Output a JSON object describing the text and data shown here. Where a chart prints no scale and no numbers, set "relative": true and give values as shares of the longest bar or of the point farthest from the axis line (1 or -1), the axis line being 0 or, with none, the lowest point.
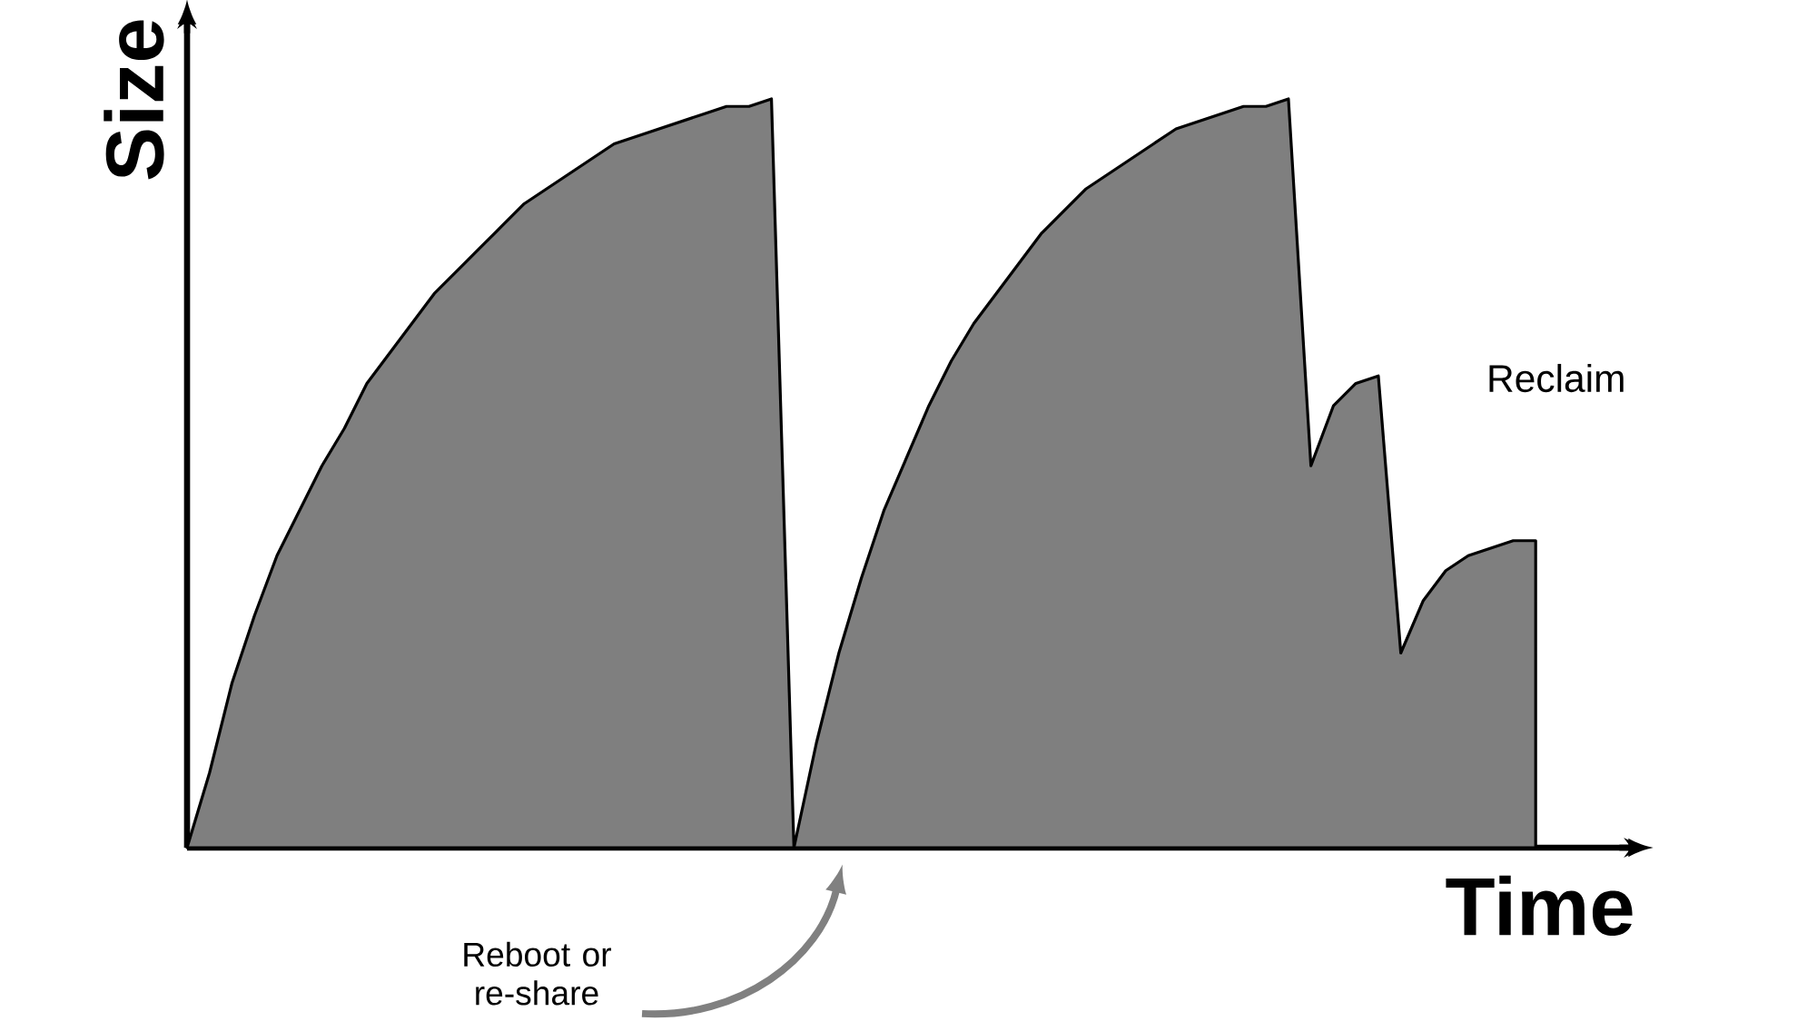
{
  "chart_data": {
    "type": "area",
    "relative": true,
    "xlabel": "Time",
    "ylabel": "Size",
    "color": "#7f7f7f",
    "tick_labels": false,
    "categories": [
      null,
      null,
      null,
      null,
      null,
      null,
      null,
      null,
      null,
      null,
      null,
      null,
      null,
      null,
      null,
      null,
      null,
      null,
      null,
      null,
      null,
      null,
      null,
      null,
      null,
      null,
      null,
      null,
      null,
      null,
      null,
      null,
      null,
      null,
      null,
      null,
      null,
      null,
      null,
      null,
      null,
      null,
      null,
      null,
      null,
      null,
      null,
      null,
      null,
      null,
      null,
      null,
      null,
      null,
      null,
      null,
      null,
      null,
      null,
      null,
      null
    ],
    "values": [
      0,
      0.1,
      0.22,
      0.31,
      0.39,
      0.45,
      0.51,
      0.56,
      0.62,
      0.66,
      0.7,
      0.74,
      0.77,
      0.8,
      0.83,
      0.86,
      0.88,
      0.9,
      0.92,
      0.94,
      0.95,
      0.96,
      0.97,
      0.98,
      0.99,
      0.99,
      1.0,
      0,
      0.14,
      0.26,
      0.36,
      0.45,
      0.52,
      0.59,
      0.65,
      0.7,
      0.74,
      0.78,
      0.82,
      0.85,
      0.88,
      0.9,
      0.92,
      0.94,
      0.96,
      0.97,
      0.98,
      0.99,
      0.99,
      1.0,
      0.51,
      0.59,
      0.62,
      0.63,
      0.26,
      0.33,
      0.37,
      0.39,
      0.4,
      0.41,
      0.41
    ],
    "annotations": [
      "Reboot or re-share",
      "Reclaim"
    ]
  }
}
